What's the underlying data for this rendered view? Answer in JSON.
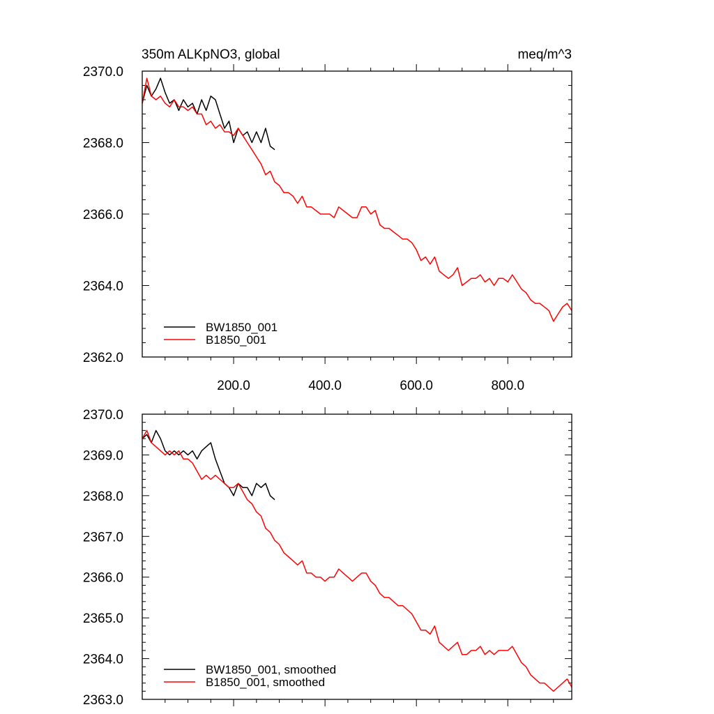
{
  "chart_data": [
    {
      "type": "line",
      "title_left": "350m ALKpNO3, global",
      "title_right": "meq/m^3",
      "xlim": [
        0,
        940
      ],
      "ylim": [
        2362.0,
        2370.0
      ],
      "x_ticks": [
        200.0,
        400.0,
        600.0,
        800.0
      ],
      "x_tick_labels": [
        "200.0",
        "400.0",
        "600.0",
        "800.0"
      ],
      "y_ticks": [
        2362.0,
        2364.0,
        2366.0,
        2368.0,
        2370.0
      ],
      "y_tick_labels": [
        "2362.0",
        "2364.0",
        "2366.0",
        "2368.0",
        "2370.0"
      ],
      "legend": [
        "BW1850_001",
        "B1850_001"
      ],
      "legend_position": "bottom-left",
      "series": [
        {
          "name": "BW1850_001",
          "color": "#000000",
          "x": [
            0,
            10,
            20,
            30,
            40,
            50,
            60,
            70,
            80,
            90,
            100,
            110,
            120,
            130,
            140,
            150,
            160,
            170,
            180,
            190,
            200,
            210,
            220,
            230,
            240,
            250,
            260,
            270,
            280,
            290
          ],
          "y": [
            2369.1,
            2369.6,
            2369.3,
            2369.5,
            2369.8,
            2369.4,
            2369.1,
            2369.2,
            2368.9,
            2369.2,
            2369.0,
            2369.1,
            2368.8,
            2369.2,
            2368.9,
            2369.3,
            2369.2,
            2368.8,
            2368.4,
            2368.6,
            2368.0,
            2368.4,
            2368.2,
            2368.3,
            2368.0,
            2368.3,
            2368.0,
            2368.4,
            2367.9,
            2367.8
          ]
        },
        {
          "name": "B1850_001",
          "color": "#ff0000",
          "x": [
            0,
            10,
            20,
            30,
            40,
            50,
            60,
            70,
            80,
            90,
            100,
            110,
            120,
            130,
            140,
            150,
            160,
            170,
            180,
            190,
            200,
            210,
            220,
            230,
            240,
            250,
            260,
            270,
            280,
            290,
            300,
            310,
            320,
            330,
            340,
            350,
            360,
            370,
            380,
            390,
            400,
            410,
            420,
            430,
            440,
            450,
            460,
            470,
            480,
            490,
            500,
            510,
            520,
            530,
            540,
            550,
            560,
            570,
            580,
            590,
            600,
            610,
            620,
            630,
            640,
            650,
            660,
            670,
            680,
            690,
            700,
            710,
            720,
            730,
            740,
            750,
            760,
            770,
            780,
            790,
            800,
            810,
            820,
            830,
            840,
            850,
            860,
            870,
            880,
            890,
            900,
            910,
            920,
            930,
            940
          ],
          "y": [
            2369.1,
            2369.8,
            2369.3,
            2369.2,
            2369.3,
            2369.1,
            2369.0,
            2369.2,
            2369.0,
            2369.0,
            2368.9,
            2369.0,
            2368.8,
            2368.8,
            2368.5,
            2368.6,
            2368.4,
            2368.5,
            2368.3,
            2368.3,
            2368.2,
            2368.4,
            2368.2,
            2368.0,
            2367.8,
            2367.6,
            2367.4,
            2367.1,
            2367.2,
            2366.9,
            2366.8,
            2366.6,
            2366.6,
            2366.5,
            2366.3,
            2366.5,
            2366.2,
            2366.2,
            2366.1,
            2366.0,
            2366.0,
            2366.0,
            2365.9,
            2366.2,
            2366.1,
            2366.0,
            2365.9,
            2365.9,
            2366.2,
            2366.2,
            2366.0,
            2366.1,
            2365.7,
            2365.6,
            2365.6,
            2365.5,
            2365.4,
            2365.3,
            2365.3,
            2365.2,
            2365.0,
            2364.7,
            2364.8,
            2364.6,
            2364.8,
            2364.4,
            2364.3,
            2364.2,
            2364.3,
            2364.5,
            2364.0,
            2364.1,
            2364.2,
            2364.2,
            2364.3,
            2364.1,
            2364.2,
            2364.0,
            2364.2,
            2364.2,
            2364.1,
            2364.3,
            2364.1,
            2363.9,
            2363.8,
            2363.6,
            2363.5,
            2363.5,
            2363.4,
            2363.3,
            2363.0,
            2363.2,
            2363.4,
            2363.5,
            2363.3
          ]
        }
      ]
    },
    {
      "type": "line",
      "xlim": [
        0,
        940
      ],
      "ylim": [
        2363.0,
        2370.0
      ],
      "x_ticks": [
        200.0,
        400.0,
        600.0,
        800.0
      ],
      "y_ticks": [
        2363.0,
        2364.0,
        2365.0,
        2366.0,
        2367.0,
        2368.0,
        2369.0,
        2370.0
      ],
      "y_tick_labels": [
        "2363.0",
        "2364.0",
        "2365.0",
        "2366.0",
        "2367.0",
        "2368.0",
        "2369.0",
        "2370.0"
      ],
      "legend": [
        "BW1850_001, smoothed",
        "B1850_001, smoothed"
      ],
      "legend_position": "bottom-left",
      "series": [
        {
          "name": "BW1850_001, smoothed",
          "color": "#000000",
          "x": [
            0,
            10,
            20,
            30,
            40,
            50,
            60,
            70,
            80,
            90,
            100,
            110,
            120,
            130,
            140,
            150,
            160,
            170,
            180,
            190,
            200,
            210,
            220,
            230,
            240,
            250,
            260,
            270,
            280,
            290
          ],
          "y": [
            2369.4,
            2369.5,
            2369.3,
            2369.6,
            2369.4,
            2369.1,
            2369.0,
            2369.1,
            2369.0,
            2369.1,
            2369.0,
            2369.1,
            2368.9,
            2369.1,
            2369.2,
            2369.3,
            2368.9,
            2368.6,
            2368.3,
            2368.2,
            2368.0,
            2368.3,
            2368.2,
            2368.2,
            2368.0,
            2368.3,
            2368.2,
            2368.3,
            2368.0,
            2367.9
          ]
        },
        {
          "name": "B1850_001, smoothed",
          "color": "#ff0000",
          "x": [
            0,
            10,
            20,
            30,
            40,
            50,
            60,
            70,
            80,
            90,
            100,
            110,
            120,
            130,
            140,
            150,
            160,
            170,
            180,
            190,
            200,
            210,
            220,
            230,
            240,
            250,
            260,
            270,
            280,
            290,
            300,
            310,
            320,
            330,
            340,
            350,
            360,
            370,
            380,
            390,
            400,
            410,
            420,
            430,
            440,
            450,
            460,
            470,
            480,
            490,
            500,
            510,
            520,
            530,
            540,
            550,
            560,
            570,
            580,
            590,
            600,
            610,
            620,
            630,
            640,
            650,
            660,
            670,
            680,
            690,
            700,
            710,
            720,
            730,
            740,
            750,
            760,
            770,
            780,
            790,
            800,
            810,
            820,
            830,
            840,
            850,
            860,
            870,
            880,
            890,
            900,
            910,
            920,
            930,
            940
          ],
          "y": [
            2369.4,
            2369.6,
            2369.3,
            2369.2,
            2369.1,
            2369.0,
            2369.1,
            2369.0,
            2369.1,
            2368.9,
            2368.9,
            2368.8,
            2368.6,
            2368.4,
            2368.5,
            2368.4,
            2368.5,
            2368.4,
            2368.3,
            2368.2,
            2368.2,
            2368.3,
            2368.1,
            2367.9,
            2367.8,
            2367.6,
            2367.5,
            2367.2,
            2367.1,
            2366.9,
            2366.8,
            2366.6,
            2366.5,
            2366.4,
            2366.3,
            2366.4,
            2366.1,
            2366.1,
            2366.0,
            2366.0,
            2365.9,
            2366.0,
            2366.0,
            2366.2,
            2366.1,
            2366.0,
            2365.9,
            2366.0,
            2366.1,
            2366.1,
            2365.9,
            2365.8,
            2365.6,
            2365.5,
            2365.5,
            2365.4,
            2365.3,
            2365.3,
            2365.2,
            2365.1,
            2364.9,
            2364.7,
            2364.7,
            2364.6,
            2364.8,
            2364.4,
            2364.3,
            2364.2,
            2364.3,
            2364.4,
            2364.1,
            2364.1,
            2364.2,
            2364.2,
            2364.3,
            2364.1,
            2364.2,
            2364.1,
            2364.2,
            2364.2,
            2364.2,
            2364.3,
            2364.1,
            2363.9,
            2363.8,
            2363.6,
            2363.5,
            2363.4,
            2363.4,
            2363.3,
            2363.2,
            2363.3,
            2363.4,
            2363.5,
            2363.3
          ]
        }
      ]
    }
  ]
}
